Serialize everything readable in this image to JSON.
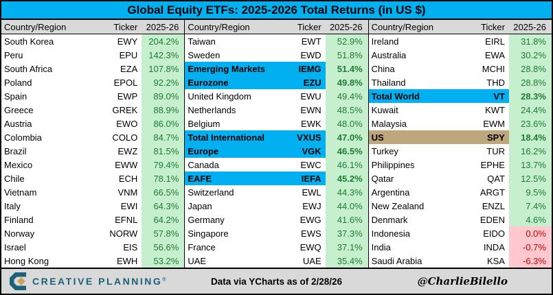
{
  "title": "Global Equity ETFs: 2025-2026 Total Returns (in US $)",
  "colors": {
    "cyan": "#00B0F0",
    "tan": "#BFA77D",
    "positive_bg": "#C6EFCE",
    "positive_text": "#1E7B34",
    "negative_bg": "#FFC7CE",
    "negative_text": "#CC0000",
    "header_bg": "#D9D9D9",
    "logo_teal": "#1D6179",
    "logo_gold": "#C9A158"
  },
  "footer": {
    "logo_text": "CREATIVE PLANNING",
    "logo_reg": "®",
    "center_text": "Data via YCharts as of 2/28/26",
    "handle": "@CharlieBilello"
  },
  "chart_data": {
    "type": "table",
    "title": "Global Equity ETFs: 2025-2026 Total Returns (in US $)",
    "columns": [
      "Country/Region",
      "Ticker",
      "2025-26"
    ],
    "tables": [
      {
        "rows": [
          {
            "name": "South Korea",
            "ticker": "EWY",
            "value": "204.2%",
            "highlight": "none",
            "tone": "green"
          },
          {
            "name": "Peru",
            "ticker": "EPU",
            "value": "142.3%",
            "highlight": "none",
            "tone": "green"
          },
          {
            "name": "South Africa",
            "ticker": "EZA",
            "value": "107.8%",
            "highlight": "none",
            "tone": "green"
          },
          {
            "name": "Poland",
            "ticker": "EPOL",
            "value": "92.2%",
            "highlight": "none",
            "tone": "green"
          },
          {
            "name": "Spain",
            "ticker": "EWP",
            "value": "89.0%",
            "highlight": "none",
            "tone": "green"
          },
          {
            "name": "Greece",
            "ticker": "GREK",
            "value": "88.9%",
            "highlight": "none",
            "tone": "green"
          },
          {
            "name": "Austria",
            "ticker": "EWO",
            "value": "86.0%",
            "highlight": "none",
            "tone": "green"
          },
          {
            "name": "Colombia",
            "ticker": "COLO",
            "value": "84.7%",
            "highlight": "none",
            "tone": "green"
          },
          {
            "name": "Brazil",
            "ticker": "EWZ",
            "value": "81.5%",
            "highlight": "none",
            "tone": "green"
          },
          {
            "name": "Mexico",
            "ticker": "EWW",
            "value": "79.4%",
            "highlight": "none",
            "tone": "green"
          },
          {
            "name": "Chile",
            "ticker": "ECH",
            "value": "78.1%",
            "highlight": "none",
            "tone": "green"
          },
          {
            "name": "Vietnam",
            "ticker": "VNM",
            "value": "66.5%",
            "highlight": "none",
            "tone": "green"
          },
          {
            "name": "Italy",
            "ticker": "EWI",
            "value": "64.3%",
            "highlight": "none",
            "tone": "green"
          },
          {
            "name": "Finland",
            "ticker": "EFNL",
            "value": "64.2%",
            "highlight": "none",
            "tone": "green"
          },
          {
            "name": "Norway",
            "ticker": "NORW",
            "value": "57.8%",
            "highlight": "none",
            "tone": "green"
          },
          {
            "name": "Israel",
            "ticker": "EIS",
            "value": "56.6%",
            "highlight": "none",
            "tone": "green"
          },
          {
            "name": "Hong Kong",
            "ticker": "EWH",
            "value": "53.2%",
            "highlight": "none",
            "tone": "green"
          }
        ]
      },
      {
        "rows": [
          {
            "name": "Taiwan",
            "ticker": "EWT",
            "value": "52.9%",
            "highlight": "none",
            "tone": "green"
          },
          {
            "name": "Sweden",
            "ticker": "EWD",
            "value": "51.8%",
            "highlight": "none",
            "tone": "green"
          },
          {
            "name": "Emerging Markets",
            "ticker": "IEMG",
            "value": "51.4%",
            "highlight": "cyan",
            "tone": "green"
          },
          {
            "name": "Eurozone",
            "ticker": "EZU",
            "value": "49.8%",
            "highlight": "cyan",
            "tone": "green"
          },
          {
            "name": "United Kingdom",
            "ticker": "EWU",
            "value": "49.4%",
            "highlight": "none",
            "tone": "green"
          },
          {
            "name": "Netherlands",
            "ticker": "EWN",
            "value": "48.5%",
            "highlight": "none",
            "tone": "green"
          },
          {
            "name": "Belgium",
            "ticker": "EWK",
            "value": "48.0%",
            "highlight": "none",
            "tone": "green"
          },
          {
            "name": "Total International",
            "ticker": "VXUS",
            "value": "47.0%",
            "highlight": "cyan",
            "tone": "green"
          },
          {
            "name": "Europe",
            "ticker": "VGK",
            "value": "46.5%",
            "highlight": "cyan",
            "tone": "green"
          },
          {
            "name": "Canada",
            "ticker": "EWC",
            "value": "46.1%",
            "highlight": "none",
            "tone": "green"
          },
          {
            "name": "EAFE",
            "ticker": "IEFA",
            "value": "45.2%",
            "highlight": "cyan",
            "tone": "green"
          },
          {
            "name": "Switzerland",
            "ticker": "EWL",
            "value": "44.3%",
            "highlight": "none",
            "tone": "green"
          },
          {
            "name": "Japan",
            "ticker": "EWJ",
            "value": "44.0%",
            "highlight": "none",
            "tone": "green"
          },
          {
            "name": "Germany",
            "ticker": "EWG",
            "value": "41.6%",
            "highlight": "none",
            "tone": "green"
          },
          {
            "name": "Singapore",
            "ticker": "EWS",
            "value": "37.3%",
            "highlight": "none",
            "tone": "green"
          },
          {
            "name": "France",
            "ticker": "EWQ",
            "value": "37.1%",
            "highlight": "none",
            "tone": "green"
          },
          {
            "name": "UAE",
            "ticker": "UAE",
            "value": "35.4%",
            "highlight": "none",
            "tone": "green"
          }
        ]
      },
      {
        "rows": [
          {
            "name": "Ireland",
            "ticker": "EIRL",
            "value": "31.8%",
            "highlight": "none",
            "tone": "green"
          },
          {
            "name": "Australia",
            "ticker": "EWA",
            "value": "30.2%",
            "highlight": "none",
            "tone": "green"
          },
          {
            "name": "China",
            "ticker": "MCHI",
            "value": "28.8%",
            "highlight": "none",
            "tone": "green"
          },
          {
            "name": "Thailand",
            "ticker": "THD",
            "value": "28.8%",
            "highlight": "none",
            "tone": "green"
          },
          {
            "name": "Total World",
            "ticker": "VT",
            "value": "28.3%",
            "highlight": "cyan",
            "tone": "green"
          },
          {
            "name": "Kuwait",
            "ticker": "KWT",
            "value": "24.4%",
            "highlight": "none",
            "tone": "green"
          },
          {
            "name": "Malaysia",
            "ticker": "EWM",
            "value": "23.6%",
            "highlight": "none",
            "tone": "green"
          },
          {
            "name": "US",
            "ticker": "SPY",
            "value": "18.4%",
            "highlight": "tan",
            "tone": "green"
          },
          {
            "name": "Turkey",
            "ticker": "TUR",
            "value": "16.2%",
            "highlight": "none",
            "tone": "green"
          },
          {
            "name": "Philippines",
            "ticker": "EPHE",
            "value": "13.7%",
            "highlight": "none",
            "tone": "green"
          },
          {
            "name": "Qatar",
            "ticker": "QAT",
            "value": "12.5%",
            "highlight": "none",
            "tone": "green"
          },
          {
            "name": "Argentina",
            "ticker": "ARGT",
            "value": "9.5%",
            "highlight": "none",
            "tone": "green"
          },
          {
            "name": "New Zealand",
            "ticker": "ENZL",
            "value": "7.4%",
            "highlight": "none",
            "tone": "green"
          },
          {
            "name": "Denmark",
            "ticker": "EDEN",
            "value": "4.6%",
            "highlight": "none",
            "tone": "green"
          },
          {
            "name": "Indonesia",
            "ticker": "EIDO",
            "value": "0.0%",
            "highlight": "none",
            "tone": "red"
          },
          {
            "name": "India",
            "ticker": "INDA",
            "value": "-0.7%",
            "highlight": "none",
            "tone": "red"
          },
          {
            "name": "Saudi Arabia",
            "ticker": "KSA",
            "value": "-6.3%",
            "highlight": "none",
            "tone": "red"
          }
        ]
      }
    ]
  }
}
